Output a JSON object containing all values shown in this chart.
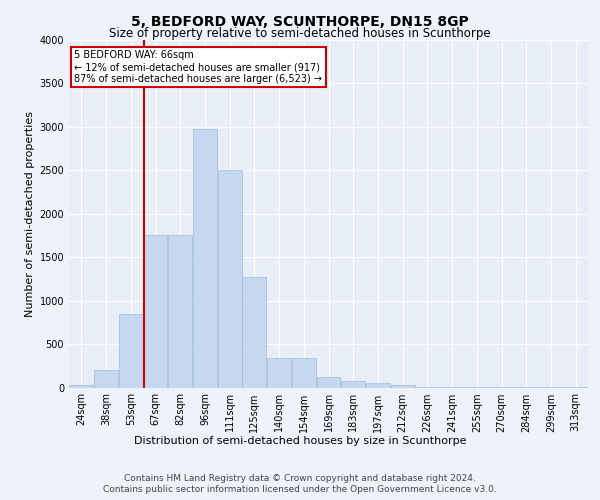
{
  "title": "5, BEDFORD WAY, SCUNTHORPE, DN15 8GP",
  "subtitle": "Size of property relative to semi-detached houses in Scunthorpe",
  "xlabel": "Distribution of semi-detached houses by size in Scunthorpe",
  "ylabel": "Number of semi-detached properties",
  "bin_labels": [
    "24sqm",
    "38sqm",
    "53sqm",
    "67sqm",
    "82sqm",
    "96sqm",
    "111sqm",
    "125sqm",
    "140sqm",
    "154sqm",
    "169sqm",
    "183sqm",
    "197sqm",
    "212sqm",
    "226sqm",
    "241sqm",
    "255sqm",
    "270sqm",
    "284sqm",
    "299sqm",
    "313sqm"
  ],
  "bar_heights": [
    30,
    200,
    850,
    1760,
    1760,
    2970,
    2500,
    1270,
    340,
    340,
    120,
    75,
    50,
    25,
    10,
    5,
    3,
    2,
    1,
    1,
    1
  ],
  "bar_color": "#c5d8f0",
  "bar_edgecolor": "#a0bcd8",
  "property_line_bin": 3,
  "annotation_title": "5 BEDFORD WAY: 66sqm",
  "annotation_line1": "← 12% of semi-detached houses are smaller (917)",
  "annotation_line2": "87% of semi-detached houses are larger (6,523) →",
  "annotation_box_facecolor": "#ffffff",
  "annotation_box_edgecolor": "#cc0000",
  "vline_color": "#cc0000",
  "ylim": [
    0,
    4000
  ],
  "yticks": [
    0,
    500,
    1000,
    1500,
    2000,
    2500,
    3000,
    3500,
    4000
  ],
  "footer1": "Contains HM Land Registry data © Crown copyright and database right 2024.",
  "footer2": "Contains public sector information licensed under the Open Government Licence v3.0.",
  "fig_facecolor": "#edf2fb",
  "plot_facecolor": "#e8eef8",
  "grid_color": "#ffffff",
  "title_fontsize": 10,
  "subtitle_fontsize": 8.5,
  "ylabel_fontsize": 8,
  "xlabel_fontsize": 8,
  "tick_fontsize": 7,
  "annot_fontsize": 7,
  "footer_fontsize": 6.5
}
